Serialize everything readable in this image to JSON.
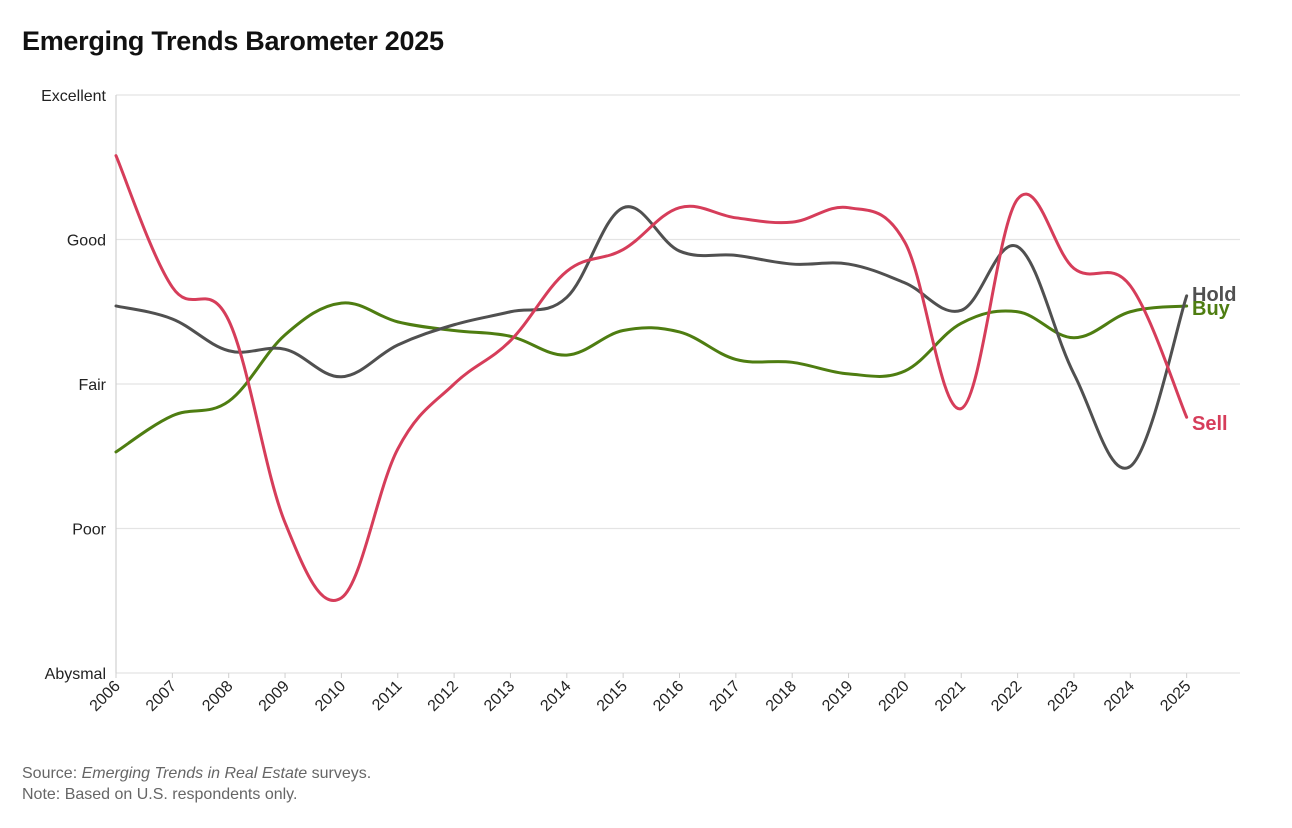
{
  "chart_data": {
    "type": "line",
    "title": "Emerging Trends Barometer 2025",
    "xlabel": "",
    "ylabel": "",
    "y_scale_labels": [
      "Abysmal",
      "Poor",
      "Fair",
      "Good",
      "Excellent"
    ],
    "ylim": [
      0,
      4
    ],
    "x": [
      "2006",
      "2007",
      "2008",
      "2009",
      "2010",
      "2011",
      "2012",
      "2013",
      "2014",
      "2015",
      "2016",
      "2017",
      "2018",
      "2019",
      "2020",
      "2021",
      "2022",
      "2023",
      "2024",
      "2025"
    ],
    "series": [
      {
        "name": "Hold",
        "color": "#505050",
        "values": [
          2.54,
          2.45,
          2.23,
          2.24,
          2.05,
          2.27,
          2.41,
          2.5,
          2.6,
          3.22,
          2.92,
          2.89,
          2.83,
          2.83,
          2.7,
          2.51,
          2.95,
          2.07,
          1.43,
          2.61
        ]
      },
      {
        "name": "Buy",
        "color": "#4e7d11",
        "values": [
          1.53,
          1.78,
          1.88,
          2.34,
          2.56,
          2.43,
          2.37,
          2.33,
          2.2,
          2.37,
          2.36,
          2.17,
          2.15,
          2.07,
          2.09,
          2.42,
          2.5,
          2.32,
          2.5,
          2.54
        ]
      },
      {
        "name": "Sell",
        "color": "#d63d5a",
        "values": [
          3.58,
          2.67,
          2.44,
          1.04,
          0.52,
          1.55,
          2.0,
          2.3,
          2.78,
          2.93,
          3.22,
          3.15,
          3.12,
          3.22,
          2.98,
          1.83,
          3.28,
          2.8,
          2.68,
          1.77
        ]
      }
    ]
  },
  "notes": {
    "source_prefix": "Source: ",
    "source_title": "Emerging Trends in Real Estate",
    "source_suffix": " surveys.",
    "note": "Note: Based on U.S. respondents only."
  }
}
